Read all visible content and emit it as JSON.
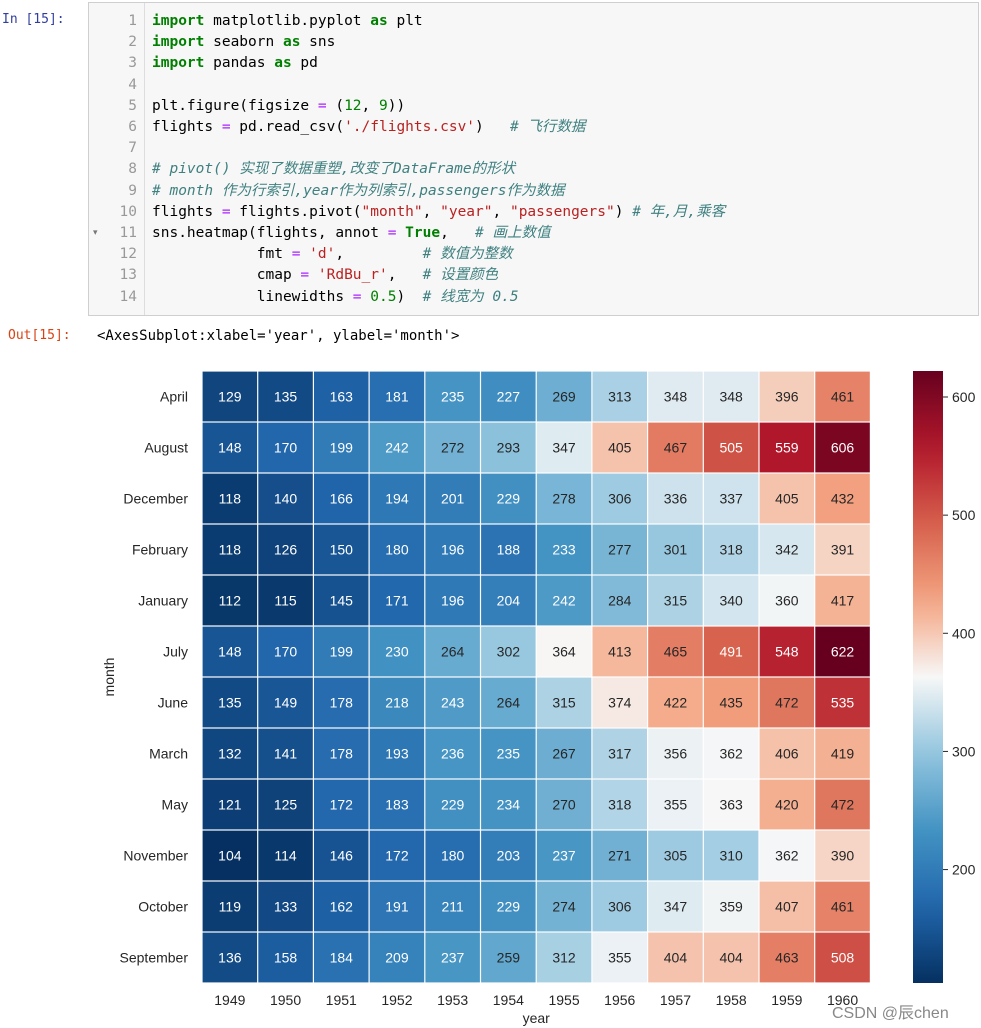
{
  "input_prompt": "In  [15]:",
  "output_prompt": "Out[15]:",
  "output_text": "<AxesSubplot:xlabel='year', ylabel='month'>",
  "code_lines": [
    {
      "n": "1",
      "html": "<span class=\"kw\">import</span> matplotlib.pyplot <span class=\"kw\">as</span> plt"
    },
    {
      "n": "2",
      "html": "<span class=\"kw\">import</span> seaborn <span class=\"kw\">as</span> sns"
    },
    {
      "n": "3",
      "html": "<span class=\"kw\">import</span> pandas <span class=\"kw\">as</span> pd"
    },
    {
      "n": "4",
      "html": ""
    },
    {
      "n": "5",
      "html": "plt.figure(figsize <span class=\"op\">=</span> (<span class=\"num\">12</span>, <span class=\"num\">9</span>))"
    },
    {
      "n": "6",
      "html": "flights <span class=\"op\">=</span> pd.read_csv(<span class=\"str\">'./flights.csv'</span>)   <span class=\"cm\"># 飞行数据</span>"
    },
    {
      "n": "7",
      "html": ""
    },
    {
      "n": "8",
      "html": "<span class=\"cm\"># pivot() 实现了数据重塑,改变了DataFrame的形状</span>"
    },
    {
      "n": "9",
      "html": "<span class=\"cm\"># month 作为行索引,year作为列索引,passengers作为数据</span>"
    },
    {
      "n": "10",
      "html": "flights <span class=\"op\">=</span> flights.pivot(<span class=\"str\">\"month\"</span>, <span class=\"str\">\"year\"</span>, <span class=\"str\">\"passengers\"</span>) <span class=\"cm\"># 年,月,乘客</span>"
    },
    {
      "n": "11",
      "html": "sns.heatmap(flights, annot <span class=\"op\">=</span> <span class=\"kw\">True</span>,   <span class=\"cm\"># 画上数值</span>"
    },
    {
      "n": "12",
      "html": "            fmt <span class=\"op\">=</span> <span class=\"str\">'d'</span>,         <span class=\"cm\"># 数值为整数</span>"
    },
    {
      "n": "13",
      "html": "            cmap <span class=\"op\">=</span> <span class=\"str\">'RdBu_r'</span>,   <span class=\"cm\"># 设置颜色</span>"
    },
    {
      "n": "14",
      "html": "            linewidths <span class=\"op\">=</span> <span class=\"num\">0.5</span>)  <span class=\"cm\"># 线宽为 0.5</span>"
    }
  ],
  "watermark": "CSDN @辰chen",
  "chart_data": {
    "type": "heatmap",
    "title": "",
    "xlabel": "year",
    "ylabel": "month",
    "x": [
      "1949",
      "1950",
      "1951",
      "1952",
      "1953",
      "1954",
      "1955",
      "1956",
      "1957",
      "1958",
      "1959",
      "1960"
    ],
    "y": [
      "April",
      "August",
      "December",
      "February",
      "January",
      "July",
      "June",
      "March",
      "May",
      "November",
      "October",
      "September"
    ],
    "values": [
      [
        129,
        135,
        163,
        181,
        235,
        227,
        269,
        313,
        348,
        348,
        396,
        461
      ],
      [
        148,
        170,
        199,
        242,
        272,
        293,
        347,
        405,
        467,
        505,
        559,
        606
      ],
      [
        118,
        140,
        166,
        194,
        201,
        229,
        278,
        306,
        336,
        337,
        405,
        432
      ],
      [
        118,
        126,
        150,
        180,
        196,
        188,
        233,
        277,
        301,
        318,
        342,
        391
      ],
      [
        112,
        115,
        145,
        171,
        196,
        204,
        242,
        284,
        315,
        340,
        360,
        417
      ],
      [
        148,
        170,
        199,
        230,
        264,
        302,
        364,
        413,
        465,
        491,
        548,
        622
      ],
      [
        135,
        149,
        178,
        218,
        243,
        264,
        315,
        374,
        422,
        435,
        472,
        535
      ],
      [
        132,
        141,
        178,
        193,
        236,
        235,
        267,
        317,
        356,
        362,
        406,
        419
      ],
      [
        121,
        125,
        172,
        183,
        229,
        234,
        270,
        318,
        355,
        363,
        420,
        472
      ],
      [
        104,
        114,
        146,
        172,
        180,
        203,
        237,
        271,
        305,
        310,
        362,
        390
      ],
      [
        119,
        133,
        162,
        191,
        211,
        229,
        274,
        306,
        347,
        359,
        407,
        461
      ],
      [
        136,
        158,
        184,
        209,
        237,
        259,
        312,
        355,
        404,
        404,
        463,
        508
      ]
    ],
    "vmin": 104,
    "vmax": 622,
    "colormap": "RdBu_r",
    "colorbar_ticks": [
      200,
      300,
      400,
      500,
      600
    ],
    "grid": false
  }
}
